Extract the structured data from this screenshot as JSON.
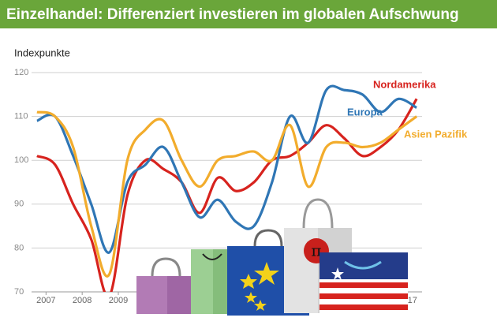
{
  "chart_data": {
    "type": "line",
    "title": "Einzelhandel: Differenziert investieren im globalen Aufschwung",
    "y_label": "Indexpunkte",
    "x": [
      2006.75,
      2007.25,
      2007.75,
      2008.25,
      2008.75,
      2009.25,
      2009.75,
      2010.25,
      2010.75,
      2011.25,
      2011.75,
      2012.25,
      2012.75,
      2013.25,
      2013.75,
      2014.25,
      2014.75,
      2015.25,
      2015.75,
      2016.25,
      2016.75,
      2017.25
    ],
    "series": [
      {
        "name": "Nordamerika",
        "color": "#d7231e",
        "values": [
          101,
          99,
          90,
          82,
          69,
          92,
          100,
          98,
          95,
          88,
          96,
          93,
          95,
          100,
          101,
          104,
          108,
          105,
          101,
          103,
          107,
          114
        ]
      },
      {
        "name": "Europa",
        "color": "#2f76b5",
        "values": [
          109,
          110,
          101,
          90,
          79,
          95,
          99,
          103,
          95,
          87,
          91,
          86,
          85,
          95,
          110,
          104,
          116,
          116,
          115,
          111,
          114,
          112
        ]
      },
      {
        "name": "Asien Pazifik",
        "color": "#f2ac2c",
        "values": [
          111,
          110,
          103,
          85,
          74,
          100,
          107,
          109,
          100,
          94,
          100,
          101,
          102,
          100,
          108,
          94,
          103,
          104,
          103,
          104,
          107,
          110
        ]
      }
    ],
    "xlim": [
      2006.6,
      2017.4
    ],
    "xticks": [
      2007,
      2008,
      2009,
      2017
    ],
    "ylim": [
      70,
      120
    ],
    "yticks": [
      70,
      80,
      90,
      100,
      110,
      120
    ],
    "grid": true
  }
}
